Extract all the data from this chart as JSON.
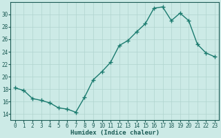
{
  "x": [
    0,
    1,
    2,
    3,
    4,
    5,
    6,
    7,
    8,
    9,
    10,
    11,
    12,
    13,
    14,
    15,
    16,
    17,
    18,
    19,
    20,
    21,
    22,
    23
  ],
  "y": [
    18.2,
    17.8,
    16.5,
    16.2,
    15.8,
    15.0,
    14.8,
    14.3,
    16.7,
    19.5,
    20.8,
    22.3,
    25.0,
    25.8,
    27.2,
    28.5,
    31.0,
    31.2,
    29.0,
    30.2,
    29.0,
    25.2,
    23.8,
    23.2
  ],
  "line_color": "#1a7a6e",
  "marker": "+",
  "marker_color": "#1a7a6e",
  "bg_color": "#cceae6",
  "grid_color": "#b0d4cf",
  "xlabel": "Humidex (Indice chaleur)",
  "ylim": [
    13,
    32
  ],
  "xlim": [
    -0.5,
    23.5
  ],
  "yticks": [
    14,
    16,
    18,
    20,
    22,
    24,
    26,
    28,
    30
  ],
  "xticks": [
    0,
    1,
    2,
    3,
    4,
    5,
    6,
    7,
    8,
    9,
    10,
    11,
    12,
    13,
    14,
    15,
    16,
    17,
    18,
    19,
    20,
    21,
    22,
    23
  ],
  "xtick_labels": [
    "0",
    "1",
    "2",
    "3",
    "4",
    "5",
    "6",
    "7",
    "8",
    "9",
    "10",
    "11",
    "12",
    "13",
    "14",
    "15",
    "16",
    "17",
    "18",
    "19",
    "20",
    "21",
    "22",
    "23"
  ],
  "font_color": "#1a5a54",
  "xlabel_fontsize": 6.5,
  "tick_fontsize": 5.5,
  "linewidth": 1.0,
  "markersize": 4.0
}
